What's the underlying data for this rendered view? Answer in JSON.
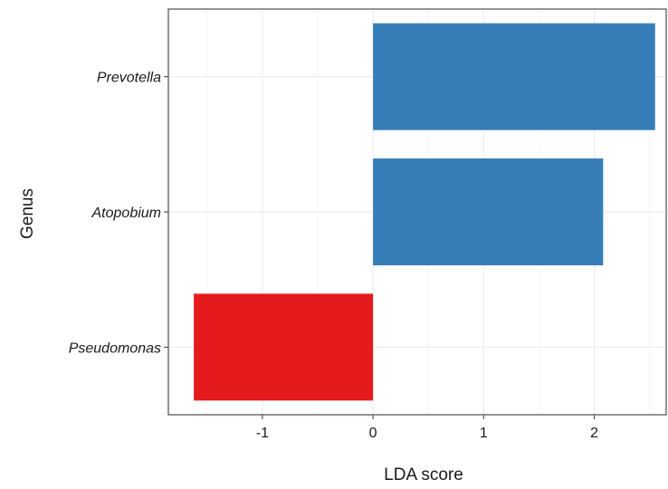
{
  "chart_data": {
    "type": "bar",
    "orientation": "horizontal",
    "categories": [
      "Prevotella",
      "Atopobium",
      "Pseudomonas"
    ],
    "values": [
      2.55,
      2.08,
      -1.62
    ],
    "bar_colors": [
      "#377eb8",
      "#377eb8",
      "#e41a1c"
    ],
    "xlabel": "LDA score",
    "ylabel": "Genus",
    "xlim": [
      -1.85,
      2.65
    ],
    "xticks": [
      -1,
      0,
      1,
      2
    ],
    "xtick_labels": [
      "-1",
      "0",
      "1",
      "2"
    ],
    "grid": true
  }
}
